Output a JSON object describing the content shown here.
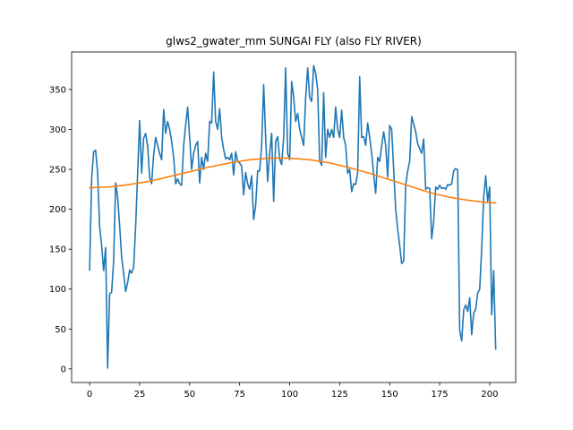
{
  "chart_data": {
    "type": "line",
    "title": "glws2_gwater_mm SUNGAI FLY (also FLY RIVER)",
    "xlabel": "",
    "ylabel": "",
    "xlim": [
      -9,
      213
    ],
    "ylim": [
      -17,
      397
    ],
    "grid": false,
    "xticks": [
      0,
      25,
      50,
      75,
      100,
      125,
      150,
      175,
      200
    ],
    "yticks": [
      0,
      50,
      100,
      150,
      200,
      250,
      300,
      350
    ],
    "series": [
      {
        "color": "#1f77b4",
        "x": [
          0,
          1,
          2,
          3,
          4,
          5,
          6,
          7,
          8,
          9,
          10,
          11,
          12,
          13,
          14,
          15,
          16,
          17,
          18,
          19,
          20,
          21,
          22,
          23,
          24,
          25,
          26,
          27,
          28,
          29,
          30,
          31,
          32,
          33,
          34,
          35,
          36,
          37,
          38,
          39,
          40,
          41,
          42,
          43,
          44,
          45,
          46,
          47,
          48,
          49,
          50,
          51,
          52,
          53,
          54,
          55,
          56,
          57,
          58,
          59,
          60,
          61,
          62,
          63,
          64,
          65,
          66,
          67,
          68,
          69,
          70,
          71,
          72,
          73,
          74,
          75,
          76,
          77,
          78,
          79,
          80,
          81,
          82,
          83,
          84,
          85,
          86,
          87,
          88,
          89,
          90,
          91,
          92,
          93,
          94,
          95,
          96,
          97,
          98,
          99,
          100,
          101,
          102,
          103,
          104,
          105,
          106,
          107,
          108,
          109,
          110,
          111,
          112,
          113,
          114,
          115,
          116,
          117,
          118,
          119,
          120,
          121,
          122,
          123,
          124,
          125,
          126,
          127,
          128,
          129,
          130,
          131,
          132,
          133,
          134,
          135,
          136,
          137,
          138,
          139,
          140,
          141,
          142,
          143,
          144,
          145,
          146,
          147,
          148,
          149,
          150,
          151,
          152,
          153,
          154,
          155,
          156,
          157,
          158,
          159,
          160,
          161,
          162,
          163,
          164,
          165,
          166,
          167,
          168,
          169,
          170,
          171,
          172,
          173,
          174,
          175,
          176,
          177,
          178,
          179,
          180,
          181,
          182,
          183,
          184,
          185,
          186,
          187,
          188,
          189,
          190,
          191,
          192,
          193,
          194,
          195,
          196,
          197,
          198,
          199,
          200,
          201,
          202,
          203
        ],
        "y": [
          124,
          238,
          272,
          274,
          245,
          178,
          155,
          123,
          152,
          1,
          94,
          96,
          135,
          233,
          215,
          180,
          140,
          120,
          97,
          108,
          124,
          120,
          127,
          178,
          245,
          311,
          245,
          289,
          295,
          279,
          240,
          232,
          268,
          290,
          280,
          270,
          262,
          325,
          295,
          310,
          300,
          285,
          265,
          232,
          238,
          232,
          230,
          280,
          305,
          328,
          290,
          250,
          270,
          280,
          285,
          233,
          265,
          250,
          270,
          260,
          310,
          308,
          372,
          310,
          300,
          326,
          290,
          275,
          263,
          265,
          262,
          270,
          243,
          272,
          260,
          258,
          254,
          218,
          246,
          232,
          225,
          242,
          187,
          205,
          248,
          248,
          280,
          356,
          290,
          235,
          270,
          295,
          210,
          285,
          291,
          263,
          256,
          290,
          377,
          270,
          262,
          360,
          341,
          310,
          320,
          300,
          290,
          280,
          340,
          377,
          340,
          335,
          380,
          370,
          350,
          260,
          255,
          346,
          265,
          300,
          290,
          300,
          290,
          328,
          300,
          290,
          324,
          290,
          280,
          245,
          250,
          222,
          232,
          231,
          246,
          366,
          290,
          291,
          280,
          308,
          290,
          270,
          243,
          220,
          265,
          260,
          280,
          297,
          280,
          240,
          305,
          300,
          250,
          200,
          175,
          155,
          132,
          135,
          230,
          248,
          260,
          316,
          307,
          297,
          282,
          276,
          270,
          288,
          225,
          227,
          226,
          163,
          185,
          228,
          225,
          230,
          226,
          227,
          225,
          231,
          230,
          232,
          248,
          251,
          249,
          48,
          35,
          74,
          80,
          72,
          89,
          43,
          70,
          75,
          95,
          100,
          150,
          215,
          242,
          210,
          228,
          68,
          123,
          25
        ]
      },
      {
        "color": "#ff7f0e",
        "x": [
          0,
          10,
          20,
          30,
          40,
          50,
          60,
          70,
          80,
          90,
          100,
          110,
          120,
          130,
          140,
          150,
          160,
          170,
          180,
          190,
          200,
          203
        ],
        "y": [
          227,
          228,
          231,
          235,
          241,
          247,
          253,
          258,
          262,
          264,
          264,
          262,
          258,
          252,
          245,
          237,
          229,
          221,
          215,
          211,
          208,
          208
        ]
      }
    ]
  }
}
